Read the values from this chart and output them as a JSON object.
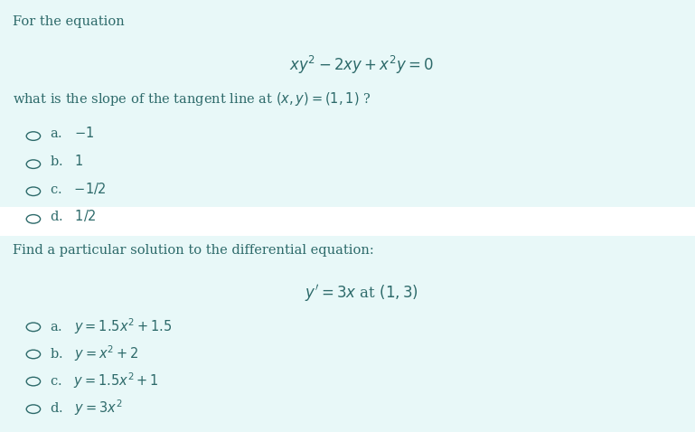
{
  "bg_color": "#e8f8f8",
  "white_band_color": "#ffffff",
  "text_color": "#2d6a6a",
  "q1_intro": "For the equation",
  "q1_equation": "$xy^2 - 2xy + x^2y = 0$",
  "q1_question": "what is the slope of the tangent line at $(x, y) = (1, 1)$ ?",
  "q1_options": [
    "a.   $-1$",
    "b.   $1$",
    "c.   $-1/2$",
    "d.   $1/2$"
  ],
  "q2_intro": "Find a particular solution to the differential equation:",
  "q2_equation": "$y' = 3x$ at $(1, 3)$",
  "q2_options": [
    "a.   $y = 1.5x^2 + 1.5$",
    "b.   $y = x^2 + 2$",
    "c.   $y = 1.5x^2 + 1$",
    "d.   $y = 3x^2$"
  ],
  "font_size_text": 10.5,
  "font_size_eq": 12,
  "circle_r": 0.01
}
